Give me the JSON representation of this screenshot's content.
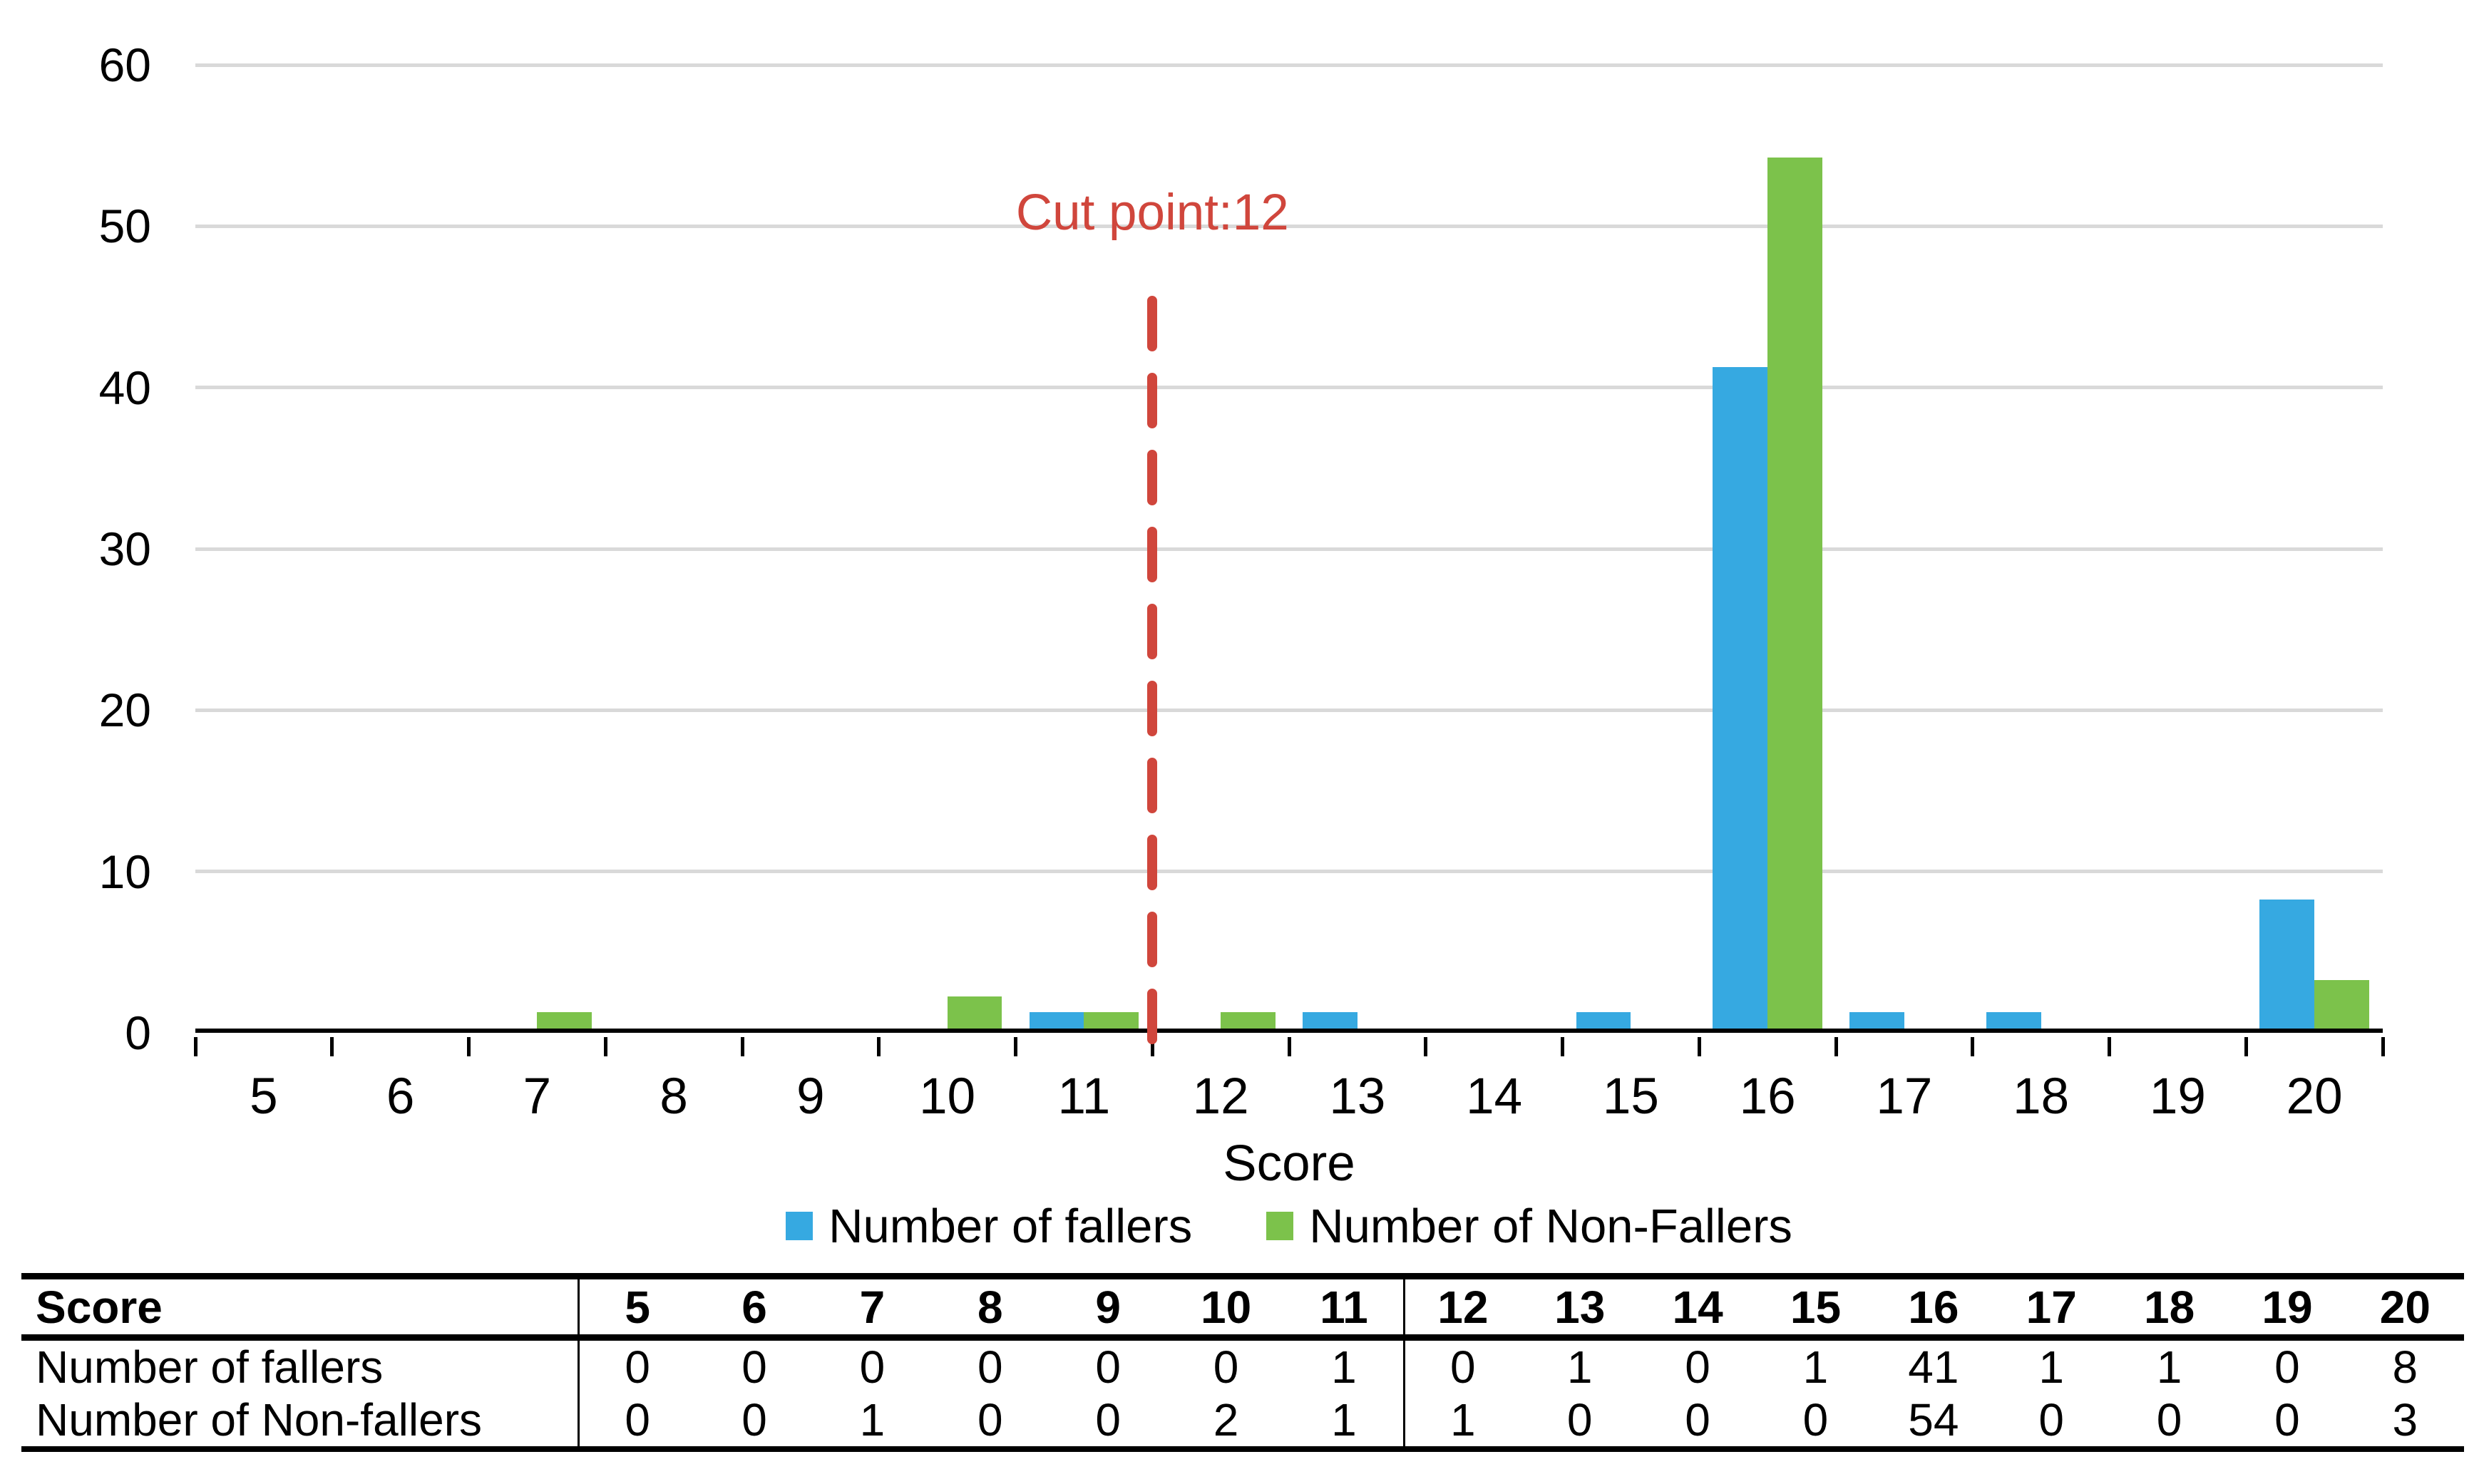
{
  "chart_data": {
    "type": "bar",
    "title": "",
    "xlabel": "Score",
    "ylabel": "",
    "ylim": [
      0,
      60
    ],
    "yticks": [
      0,
      10,
      20,
      30,
      40,
      50,
      60
    ],
    "grid": true,
    "gridline_color": "#D9D9D9",
    "legend_position": "bottom",
    "categories": [
      "5",
      "6",
      "7",
      "8",
      "9",
      "10",
      "11",
      "12",
      "13",
      "14",
      "15",
      "16",
      "17",
      "18",
      "19",
      "20"
    ],
    "series": [
      {
        "name": "Number of fallers",
        "color": "#36A9E1",
        "values": [
          0,
          0,
          0,
          0,
          0,
          0,
          1,
          0,
          1,
          0,
          1,
          41,
          1,
          1,
          0,
          8
        ]
      },
      {
        "name": "Number of Non-Fallers",
        "color": "#7CC24B",
        "values": [
          0,
          0,
          1,
          0,
          0,
          2,
          1,
          1,
          0,
          0,
          0,
          54,
          0,
          0,
          0,
          3
        ]
      }
    ],
    "annotation": {
      "label": "Cut point:12",
      "color": "#D0463C",
      "boundary_index": 7,
      "between_categories": [
        "11",
        "12"
      ]
    }
  },
  "table": {
    "corner_label": "Score",
    "columns": [
      "5",
      "6",
      "7",
      "8",
      "9",
      "10",
      "11",
      "12",
      "13",
      "14",
      "15",
      "16",
      "17",
      "18",
      "19",
      "20"
    ],
    "divider_before_column": "12",
    "rows": [
      {
        "label": "Number of fallers",
        "values": [
          "0",
          "0",
          "0",
          "0",
          "0",
          "0",
          "1",
          "0",
          "1",
          "0",
          "1",
          "41",
          "1",
          "1",
          "0",
          "8"
        ]
      },
      {
        "label": "Number of Non-fallers",
        "values": [
          "0",
          "0",
          "1",
          "0",
          "0",
          "2",
          "1",
          "1",
          "0",
          "0",
          "0",
          "54",
          "0",
          "0",
          "0",
          "3"
        ]
      }
    ]
  }
}
